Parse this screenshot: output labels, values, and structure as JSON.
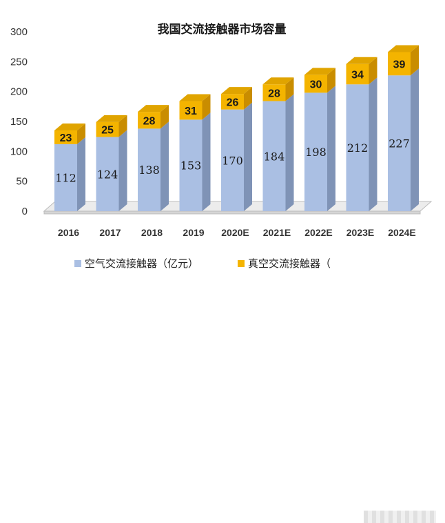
{
  "chart_data": {
    "type": "bar",
    "stacked": true,
    "style": "3d",
    "title": "我国交流接触器市场容量",
    "categories": [
      "2016",
      "2017",
      "2018",
      "2019",
      "2020E",
      "2021E",
      "2022E",
      "2023E",
      "2024E"
    ],
    "series": [
      {
        "name": "空气交流接触器（亿元）",
        "color": "#aabfe3",
        "values": [
          112,
          124,
          138,
          153,
          170,
          184,
          198,
          212,
          227
        ]
      },
      {
        "name": "真空交流接触器（",
        "color": "#f4b400",
        "values": [
          23,
          25,
          28,
          31,
          26,
          28,
          30,
          34,
          39
        ]
      }
    ],
    "yticks": [
      "0",
      "50",
      "100",
      "150",
      "200",
      "250",
      "300"
    ],
    "ylim": [
      0,
      300
    ],
    "legend": "bottom",
    "grid": false
  }
}
